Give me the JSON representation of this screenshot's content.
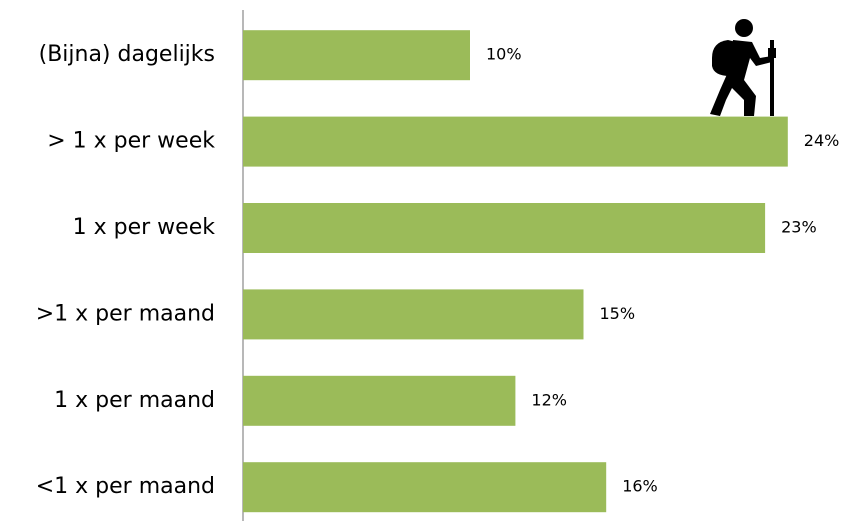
{
  "chart_data": {
    "type": "bar",
    "orientation": "horizontal",
    "categories": [
      "(Bijna) dagelijks",
      "> 1 x per week",
      "1 x per week",
      ">1 x per maand",
      "1 x per maand",
      "<1 x per maand"
    ],
    "values": [
      10,
      24,
      23,
      15,
      12,
      16
    ],
    "value_labels": [
      "10%",
      "24%",
      "23%",
      "15%",
      "12%",
      "16%"
    ],
    "color": "#9bbb59"
  }
}
